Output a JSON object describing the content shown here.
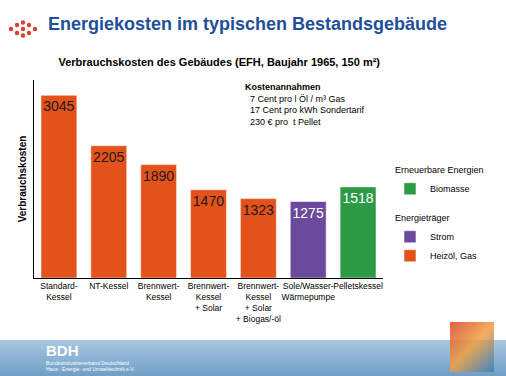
{
  "header": {
    "title": "Energiekosten im typischen Bestandsgebäude"
  },
  "chart_data": {
    "type": "bar",
    "title": "Verbrauchskosten des Gebäudes (EFH, Baujahr 1965, 150 m²)",
    "y_label": "Verbrauchskosten",
    "categories": [
      "Standard-\nKessel",
      "NT-Kessel",
      "Brennwert-\nKessel",
      "Brennwert-\nKessel\n+ Solar",
      "Brennwert-\nKessel\n+ Solar\n+ Biogas/-öl",
      "Sole/Wasser-\nWärmepumpe",
      "Pelletskessel"
    ],
    "series": [
      {
        "name": "Biomasse",
        "group": "Erneuerbare Energien",
        "color": "#2d9a45",
        "values": [
          null,
          null,
          null,
          null,
          null,
          null,
          1518
        ]
      },
      {
        "name": "Strom",
        "group": "Energieträger",
        "color": "#6a4a9c",
        "values": [
          null,
          null,
          null,
          null,
          null,
          1275,
          null
        ]
      },
      {
        "name": "Heizöl, Gas",
        "group": "Energieträger",
        "color": "#e4521b",
        "values": [
          3045,
          2205,
          1890,
          1470,
          1323,
          null,
          null
        ]
      }
    ],
    "ylim": [
      0,
      3300
    ],
    "tick_labels": "x",
    "data_labels": true,
    "stacked": false,
    "legend": "right",
    "annotations": [
      {
        "title": "Kostenannahmen",
        "lines": [
          "7 Cent pro l Öl / m³ Gas",
          "17 Cent pro kWh Sondertarif",
          "230 € pro  t Pellet"
        ]
      }
    ]
  },
  "footer": {
    "logo": "BDH",
    "lines": [
      "Bundesindustrieverband Deutschland",
      "Haus-, Energie- und Umwelttechnik e.V."
    ]
  }
}
